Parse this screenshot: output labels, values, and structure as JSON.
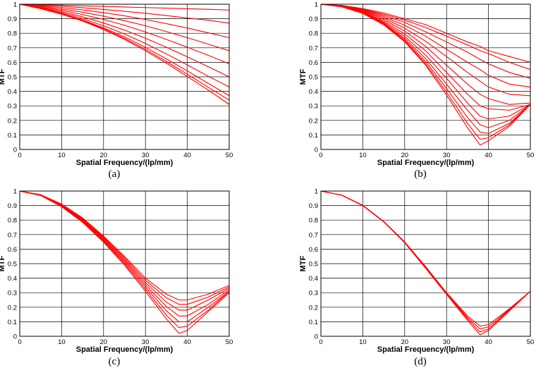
{
  "colors": {
    "curve": "#ff0000",
    "grid": "#000000",
    "axes": "#000000",
    "background": "#ffffff"
  },
  "chart_data": [
    {
      "panel_label": "(a)",
      "type": "line",
      "xlabel": "Spatial Frequency/(lp/mm)",
      "ylabel": "MTF",
      "xlim": [
        0,
        50
      ],
      "ylim": [
        0,
        1
      ],
      "xticks": [
        "0",
        "10",
        "20",
        "30",
        "40",
        "50"
      ],
      "yticks": [
        "0",
        "0.1",
        "0.2",
        "0.3",
        "0.4",
        "0.5",
        "0.6",
        "0.7",
        "0.8",
        "0.9",
        "1"
      ],
      "grid": true,
      "x": [
        0,
        5,
        10,
        15,
        20,
        25,
        30,
        35,
        40,
        45,
        50
      ],
      "series": [
        {
          "values": [
            1.0,
            0.997,
            0.993,
            0.989,
            0.985,
            0.981,
            0.977,
            0.973,
            0.969,
            0.965,
            0.96
          ]
        },
        {
          "values": [
            1.0,
            0.994,
            0.986,
            0.976,
            0.964,
            0.951,
            0.938,
            0.922,
            0.905,
            0.89,
            0.87
          ]
        },
        {
          "values": [
            1.0,
            0.99,
            0.977,
            0.961,
            0.942,
            0.92,
            0.895,
            0.866,
            0.836,
            0.803,
            0.77
          ]
        },
        {
          "values": [
            1.0,
            0.986,
            0.967,
            0.945,
            0.918,
            0.887,
            0.852,
            0.812,
            0.77,
            0.725,
            0.68
          ]
        },
        {
          "values": [
            1.0,
            0.981,
            0.958,
            0.929,
            0.895,
            0.855,
            0.809,
            0.758,
            0.704,
            0.648,
            0.59
          ]
        },
        {
          "values": [
            1.0,
            0.977,
            0.948,
            0.913,
            0.871,
            0.822,
            0.766,
            0.704,
            0.638,
            0.57,
            0.5
          ]
        },
        {
          "values": [
            1.0,
            0.974,
            0.941,
            0.9,
            0.852,
            0.795,
            0.73,
            0.658,
            0.582,
            0.504,
            0.43
          ]
        },
        {
          "values": [
            1.0,
            0.971,
            0.935,
            0.891,
            0.838,
            0.775,
            0.703,
            0.624,
            0.541,
            0.455,
            0.37
          ]
        },
        {
          "values": [
            1.0,
            0.97,
            0.933,
            0.887,
            0.831,
            0.765,
            0.689,
            0.606,
            0.518,
            0.428,
            0.34
          ]
        },
        {
          "values": [
            1.0,
            0.969,
            0.931,
            0.884,
            0.826,
            0.758,
            0.68,
            0.594,
            0.502,
            0.409,
            0.31
          ]
        }
      ]
    },
    {
      "panel_label": "(b)",
      "type": "line",
      "xlabel": "Spatial Frequency/(lp/mm)",
      "ylabel": "MTF",
      "xlim": [
        0,
        50
      ],
      "ylim": [
        0,
        1
      ],
      "xticks": [
        "0",
        "10",
        "20",
        "30",
        "40",
        "50"
      ],
      "yticks": [
        "0",
        "0.1",
        "0.2",
        "0.3",
        "0.4",
        "0.5",
        "0.6",
        "0.7",
        "0.8",
        "0.9",
        "1"
      ],
      "grid": true,
      "x": [
        0,
        5,
        10,
        15,
        20,
        25,
        30,
        35,
        38,
        40,
        45,
        50
      ],
      "series": [
        {
          "values": [
            1.0,
            0.992,
            0.97,
            0.94,
            0.9,
            0.86,
            0.8,
            0.74,
            0.71,
            0.68,
            0.64,
            0.6
          ]
        },
        {
          "values": [
            1.0,
            0.991,
            0.966,
            0.932,
            0.89,
            0.84,
            0.78,
            0.72,
            0.68,
            0.66,
            0.6,
            0.55
          ]
        },
        {
          "values": [
            1.0,
            0.99,
            0.963,
            0.924,
            0.875,
            0.81,
            0.74,
            0.67,
            0.62,
            0.59,
            0.53,
            0.49
          ]
        },
        {
          "values": [
            1.0,
            0.989,
            0.96,
            0.915,
            0.855,
            0.78,
            0.69,
            0.6,
            0.55,
            0.51,
            0.45,
            0.43
          ]
        },
        {
          "values": [
            1.0,
            0.988,
            0.956,
            0.905,
            0.835,
            0.745,
            0.64,
            0.53,
            0.47,
            0.43,
            0.38,
            0.37
          ]
        },
        {
          "values": [
            1.0,
            0.987,
            0.952,
            0.895,
            0.815,
            0.71,
            0.58,
            0.45,
            0.38,
            0.35,
            0.31,
            0.32
          ]
        },
        {
          "values": [
            1.0,
            0.986,
            0.948,
            0.885,
            0.795,
            0.68,
            0.53,
            0.38,
            0.3,
            0.28,
            0.27,
            0.31
          ]
        },
        {
          "values": [
            1.0,
            0.985,
            0.945,
            0.877,
            0.778,
            0.65,
            0.49,
            0.32,
            0.23,
            0.21,
            0.23,
            0.31
          ]
        },
        {
          "values": [
            1.0,
            0.984,
            0.942,
            0.87,
            0.765,
            0.625,
            0.45,
            0.27,
            0.17,
            0.15,
            0.2,
            0.31
          ]
        },
        {
          "values": [
            1.0,
            0.983,
            0.94,
            0.865,
            0.755,
            0.605,
            0.42,
            0.22,
            0.12,
            0.11,
            0.18,
            0.31
          ]
        },
        {
          "values": [
            1.0,
            0.982,
            0.938,
            0.861,
            0.747,
            0.59,
            0.395,
            0.18,
            0.07,
            0.08,
            0.17,
            0.31
          ]
        },
        {
          "values": [
            1.0,
            0.982,
            0.937,
            0.858,
            0.742,
            0.58,
            0.375,
            0.15,
            0.03,
            0.06,
            0.16,
            0.31
          ]
        }
      ]
    },
    {
      "panel_label": "(c)",
      "type": "line",
      "xlabel": "Spatial Frequency/(lp/mm)",
      "ylabel": "MTF",
      "xlim": [
        0,
        50
      ],
      "ylim": [
        0,
        1
      ],
      "xticks": [
        "0",
        "10",
        "20",
        "30",
        "40",
        "50"
      ],
      "yticks": [
        "0",
        "0.1",
        "0.2",
        "0.3",
        "0.4",
        "0.5",
        "0.6",
        "0.7",
        "0.8",
        "0.9",
        "1"
      ],
      "grid": true,
      "x": [
        0,
        5,
        10,
        15,
        20,
        25,
        30,
        35,
        38,
        40,
        45,
        50
      ],
      "series": [
        {
          "values": [
            1.0,
            0.975,
            0.91,
            0.815,
            0.69,
            0.55,
            0.4,
            0.29,
            0.25,
            0.25,
            0.29,
            0.35
          ]
        },
        {
          "values": [
            1.0,
            0.974,
            0.907,
            0.81,
            0.683,
            0.54,
            0.385,
            0.265,
            0.22,
            0.22,
            0.27,
            0.34
          ]
        },
        {
          "values": [
            1.0,
            0.973,
            0.904,
            0.805,
            0.676,
            0.53,
            0.37,
            0.235,
            0.18,
            0.18,
            0.25,
            0.33
          ]
        },
        {
          "values": [
            1.0,
            0.972,
            0.901,
            0.8,
            0.669,
            0.52,
            0.355,
            0.205,
            0.14,
            0.14,
            0.22,
            0.32
          ]
        },
        {
          "values": [
            1.0,
            0.971,
            0.898,
            0.795,
            0.662,
            0.51,
            0.34,
            0.175,
            0.1,
            0.1,
            0.2,
            0.31
          ]
        },
        {
          "values": [
            1.0,
            0.97,
            0.895,
            0.79,
            0.655,
            0.5,
            0.325,
            0.145,
            0.06,
            0.07,
            0.18,
            0.31
          ]
        },
        {
          "values": [
            1.0,
            0.969,
            0.892,
            0.785,
            0.648,
            0.49,
            0.31,
            0.12,
            0.02,
            0.04,
            0.17,
            0.3
          ]
        }
      ]
    },
    {
      "panel_label": "(d)",
      "type": "line",
      "xlabel": "Spatial Frequency/(lp/mm)",
      "ylabel": "MTF",
      "xlim": [
        0,
        50
      ],
      "ylim": [
        0,
        1
      ],
      "xticks": [
        "0",
        "10",
        "20",
        "30",
        "40",
        "50"
      ],
      "yticks": [
        "0",
        "0.1",
        "0.2",
        "0.3",
        "0.4",
        "0.5",
        "0.6",
        "0.7",
        "0.8",
        "0.9",
        "1"
      ],
      "grid": true,
      "x": [
        0,
        5,
        10,
        15,
        20,
        25,
        30,
        35,
        38,
        40,
        45,
        50
      ],
      "series": [
        {
          "values": [
            1.0,
            0.972,
            0.902,
            0.791,
            0.65,
            0.48,
            0.3,
            0.14,
            0.07,
            0.08,
            0.19,
            0.31
          ]
        },
        {
          "values": [
            1.0,
            0.972,
            0.901,
            0.79,
            0.648,
            0.476,
            0.296,
            0.13,
            0.05,
            0.065,
            0.185,
            0.31
          ]
        },
        {
          "values": [
            1.0,
            0.971,
            0.9,
            0.789,
            0.646,
            0.472,
            0.292,
            0.12,
            0.03,
            0.05,
            0.18,
            0.31
          ]
        },
        {
          "values": [
            1.0,
            0.971,
            0.899,
            0.788,
            0.644,
            0.468,
            0.288,
            0.11,
            0.01,
            0.04,
            0.175,
            0.31
          ]
        }
      ]
    }
  ]
}
